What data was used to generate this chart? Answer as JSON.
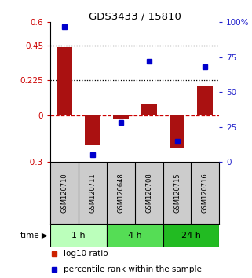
{
  "title": "GDS3433 / 15810",
  "samples": [
    "GSM120710",
    "GSM120711",
    "GSM120648",
    "GSM120708",
    "GSM120715",
    "GSM120716"
  ],
  "log10_ratio": [
    0.44,
    -0.19,
    -0.025,
    0.075,
    -0.21,
    0.185
  ],
  "percentile_rank": [
    97,
    5,
    28,
    72,
    15,
    68
  ],
  "ylim_left": [
    -0.3,
    0.6
  ],
  "ylim_right": [
    0,
    100
  ],
  "yticks_left": [
    -0.3,
    0,
    0.225,
    0.45,
    0.6
  ],
  "yticks_right": [
    0,
    25,
    50,
    75,
    100
  ],
  "hlines_dotted": [
    0.45,
    0.225
  ],
  "hline_dashed": 0,
  "bar_color": "#aa1111",
  "dot_color": "#0000cc",
  "time_groups": [
    {
      "label": "1 h",
      "start": 0,
      "end": 2,
      "color": "#bbffbb"
    },
    {
      "label": "4 h",
      "start": 2,
      "end": 4,
      "color": "#55dd55"
    },
    {
      "label": "24 h",
      "start": 4,
      "end": 6,
      "color": "#22bb22"
    }
  ],
  "legend_bar_color": "#cc2200",
  "legend_dot_color": "#0000cc",
  "bar_width": 0.55,
  "background_color": "#ffffff",
  "label_color_left": "#cc0000",
  "label_color_right": "#2222cc",
  "sample_bg": "#cccccc"
}
